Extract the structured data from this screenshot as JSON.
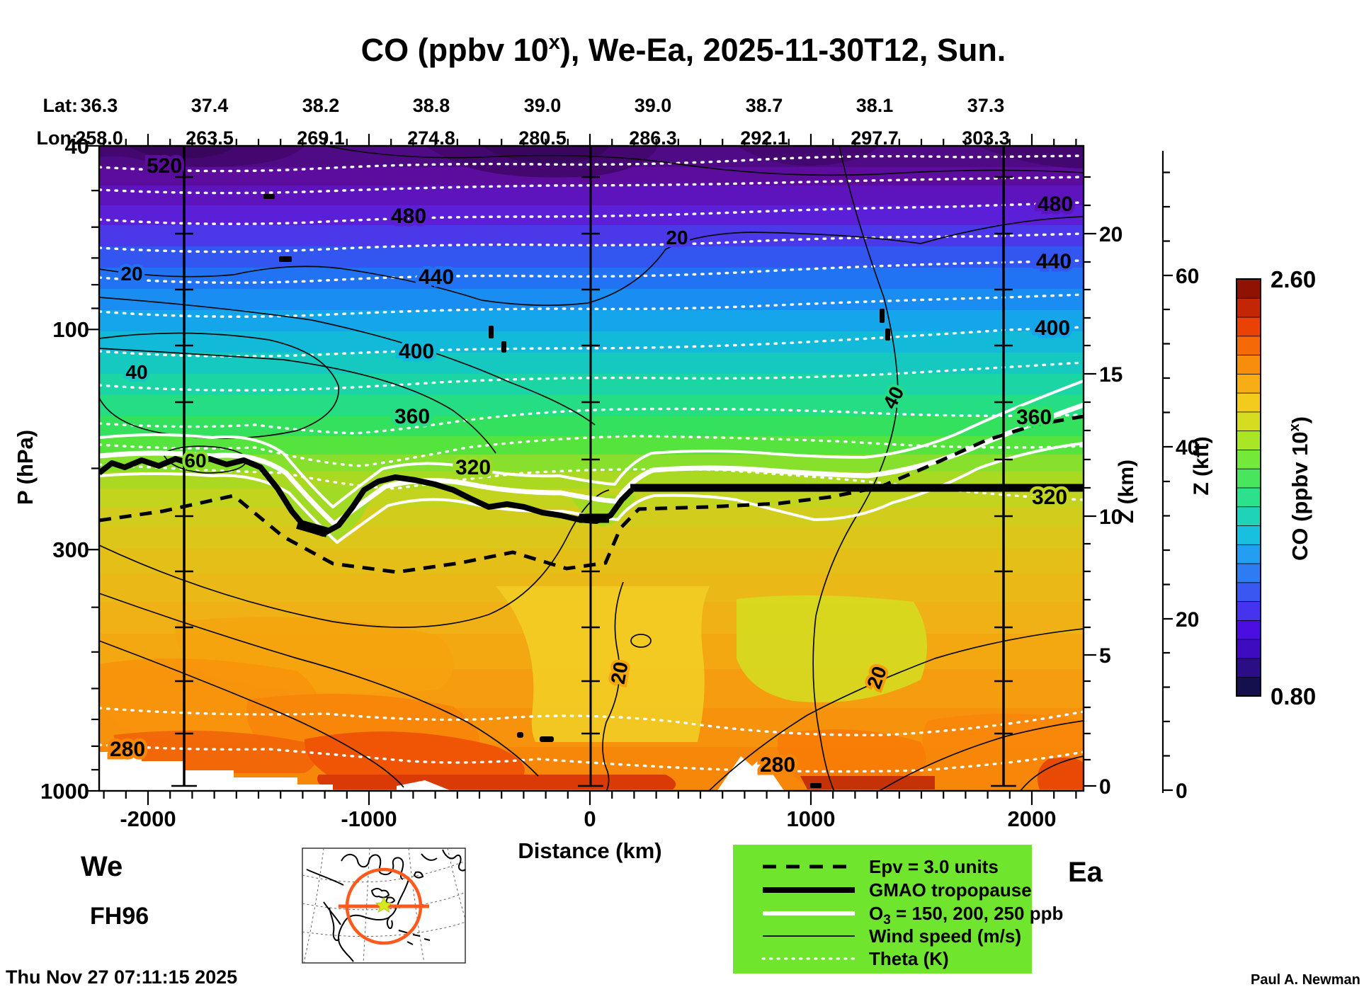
{
  "title": {
    "prefix": "CO (ppbv 10",
    "sup": "x",
    "suffix": "), We-Ea, 2025-11-30T12, Sun."
  },
  "top_axis": {
    "lat_label": "Lat:",
    "lon_label": "Lon:",
    "lat_values": [
      "36.3",
      "37.4",
      "38.2",
      "38.8",
      "39.0",
      "39.0",
      "38.7",
      "38.1",
      "37.3"
    ],
    "lon_values": [
      "258.0",
      "263.5",
      "269.1",
      "274.8",
      "280.5",
      "286.3",
      "292.1",
      "297.7",
      "303.3"
    ]
  },
  "axes": {
    "pressure": {
      "label": "P (hPa)",
      "ticks": [
        "40",
        "100",
        "300",
        "1000"
      ]
    },
    "distance": {
      "label": "Distance (km)",
      "ticks": [
        "-2000",
        "-1000",
        "0",
        "1000",
        "2000"
      ]
    },
    "z_km": {
      "label": "Z (km)",
      "ticks": [
        "0",
        "5",
        "10",
        "15",
        "20"
      ]
    },
    "z_kft": {
      "label": "Z (kft)",
      "ticks": [
        "0",
        "20",
        "40",
        "60"
      ]
    }
  },
  "colorbar": {
    "min": "0.80",
    "max": "2.60",
    "label_prefix": "CO (ppbv 10",
    "label_sup": "x",
    "label_suffix": ")",
    "colors": [
      "#14104d",
      "#2b0d86",
      "#3f0bbf",
      "#4a0ee0",
      "#4533ee",
      "#3a57f2",
      "#2e7cf4",
      "#229ff0",
      "#18bfdf",
      "#1ed3b7",
      "#2ce08c",
      "#48e65c",
      "#74e93a",
      "#a8e626",
      "#d6dc1f",
      "#f2cb1c",
      "#f7ad14",
      "#f88d0c",
      "#f56a06",
      "#ea4104",
      "#c42605",
      "#8f1203"
    ]
  },
  "labels": {
    "theta_520": "520",
    "theta_480": "480",
    "theta_440": "440",
    "theta_400": "400",
    "theta_360": "360",
    "theta_320": "320",
    "theta_280": "280",
    "wind_20": "20",
    "wind_40": "40",
    "wind_60": "60"
  },
  "legend": {
    "epv": "Epv = 3.0 units",
    "tropopause": "GMAO tropopause",
    "o3_prefix": "O",
    "o3_sub": "3",
    "o3_suffix": " = 150, 200, 250 ppb",
    "wind": "Wind speed (m/s)",
    "theta": "Theta (K)"
  },
  "footer": {
    "we": "We",
    "ea": "Ea",
    "model": "FH96",
    "timestamp": "Thu Nov 27 07:11:15 2025",
    "credit": "Paul A. Newman (NASA"
  },
  "chart_data": {
    "type": "filled_contour_cross_section",
    "title": "CO (ppbv 10^x), We-Ea, 2025-11-30T12, Sun.",
    "x_axis": {
      "label": "Distance (km)",
      "range": [
        -2225,
        2235
      ],
      "ticks": [
        -2000,
        -1000,
        0,
        1000,
        2000
      ]
    },
    "y_axis": {
      "label": "P (hPa)",
      "scale": "log",
      "range": [
        40,
        1000
      ],
      "ticks": [
        40,
        100,
        300,
        1000
      ]
    },
    "y2_axis": {
      "label": "Z (km)",
      "ticks": [
        0,
        5,
        10,
        15,
        20
      ]
    },
    "y3_axis": {
      "label": "Z (kft)",
      "ticks": [
        0,
        20,
        40,
        60
      ]
    },
    "fill_field": {
      "name": "CO (ppbv 10^x)",
      "scale_min": 0.8,
      "scale_max": 2.6,
      "description": "CO filled contours: ~0.8 (dark purple, upper stratosphere) increasing to ~2.6 (dark red, near surface)"
    },
    "waypoints": {
      "lat": [
        36.3,
        37.4,
        38.2,
        38.8,
        39.0,
        39.0,
        38.7,
        38.1,
        37.3
      ],
      "lon": [
        258.0,
        263.5,
        269.1,
        274.8,
        280.5,
        286.3,
        292.1,
        297.7,
        303.3
      ]
    },
    "marker_lines_km": [
      -1840,
      0,
      1870
    ],
    "contours": {
      "theta_K": {
        "style": "white dotted",
        "interval": 20,
        "labeled": [
          280,
          320,
          360,
          400,
          440,
          480,
          520
        ]
      },
      "wind_ms": {
        "style": "thin black solid",
        "labeled": [
          20,
          40,
          60
        ]
      },
      "o3_ppb": {
        "style": "white solid",
        "levels": [
          150,
          200,
          250
        ]
      },
      "epv": {
        "style": "black dashed",
        "level": 3.0
      },
      "tropopause": {
        "style": "thick black",
        "source": "GMAO",
        "approx_profile_km_hPa": [
          [
            -2200,
            205
          ],
          [
            -1700,
            208
          ],
          [
            -1300,
            250
          ],
          [
            -1000,
            215
          ],
          [
            -700,
            255
          ],
          [
            -350,
            270
          ],
          [
            -180,
            230
          ],
          [
            0,
            221
          ],
          [
            2230,
            221
          ]
        ]
      }
    }
  }
}
